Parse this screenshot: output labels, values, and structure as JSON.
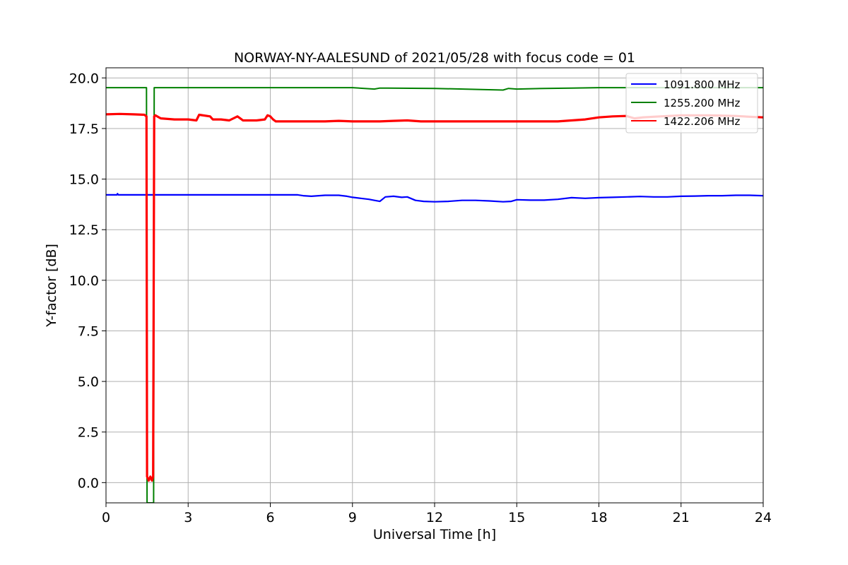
{
  "chart_data": {
    "type": "line",
    "title": "NORWAY-NY-AALESUND of 2021/05/28 with focus code = 01",
    "xlabel": "Universal Time [h]",
    "ylabel": "Y-factor [dB]",
    "xlim": [
      0,
      24
    ],
    "ylim": [
      -1.0,
      20.5
    ],
    "xticks": [
      0,
      3,
      6,
      9,
      12,
      15,
      18,
      21,
      24
    ],
    "xtick_labels": [
      "0",
      "3",
      "6",
      "9",
      "12",
      "15",
      "18",
      "21",
      "24"
    ],
    "yticks": [
      0.0,
      2.5,
      5.0,
      7.5,
      10.0,
      12.5,
      15.0,
      17.5,
      20.0
    ],
    "ytick_labels": [
      "0.0",
      "2.5",
      "5.0",
      "7.5",
      "10.0",
      "12.5",
      "15.0",
      "17.5",
      "20.0"
    ],
    "grid": true,
    "legend_position": "top-right",
    "series": [
      {
        "name": "1091.800 MHz",
        "color": "#0000ff",
        "x": [
          0,
          0.4,
          0.42,
          0.45,
          1,
          2,
          3,
          4,
          5,
          6,
          7,
          7.2,
          7.5,
          8,
          8.5,
          8.8,
          9,
          9.3,
          9.6,
          9.8,
          10,
          10.2,
          10.5,
          10.8,
          11,
          11.3,
          11.6,
          12,
          12.5,
          13,
          13.5,
          14,
          14.5,
          14.8,
          15,
          15.5,
          16,
          16.5,
          17,
          17.5,
          18,
          18.5,
          19,
          19.5,
          20,
          20.5,
          21,
          21.5,
          22,
          22.5,
          23,
          23.5,
          24
        ],
        "y": [
          14.22,
          14.22,
          14.28,
          14.22,
          14.22,
          14.22,
          14.22,
          14.22,
          14.22,
          14.22,
          14.22,
          14.18,
          14.15,
          14.2,
          14.2,
          14.15,
          14.1,
          14.05,
          14.0,
          13.95,
          13.9,
          14.12,
          14.15,
          14.1,
          14.12,
          13.95,
          13.9,
          13.88,
          13.9,
          13.95,
          13.95,
          13.92,
          13.88,
          13.9,
          13.98,
          13.96,
          13.96,
          14.0,
          14.08,
          14.05,
          14.08,
          14.1,
          14.12,
          14.14,
          14.12,
          14.12,
          14.15,
          14.16,
          14.18,
          14.18,
          14.2,
          14.2,
          14.18
        ]
      },
      {
        "name": "1255.200 MHz",
        "color": "#008000",
        "x": [
          0,
          1.48,
          1.5,
          1.74,
          1.76,
          3,
          6,
          9,
          9.8,
          10,
          10.3,
          12,
          14.5,
          14.7,
          15,
          16,
          17,
          18,
          21,
          24
        ],
        "y": [
          19.52,
          19.52,
          -1.0,
          -1.0,
          19.52,
          19.52,
          19.52,
          19.52,
          19.45,
          19.5,
          19.5,
          19.48,
          19.4,
          19.48,
          19.45,
          19.48,
          19.5,
          19.52,
          19.52,
          19.52
        ],
        "note_break": [
          1.5,
          1.74
        ]
      },
      {
        "name": "1422.206 MHz",
        "color": "#ff0000",
        "x": [
          0,
          0.5,
          1.0,
          1.4,
          1.48,
          1.5,
          1.56,
          1.62,
          1.68,
          1.72,
          1.76,
          1.8,
          2.0,
          2.5,
          3.0,
          3.3,
          3.4,
          3.8,
          3.9,
          4.2,
          4.5,
          4.8,
          4.9,
          5.0,
          5.5,
          5.8,
          5.9,
          6.0,
          6.1,
          6.2,
          7.0,
          8.0,
          8.5,
          9.0,
          10.0,
          10.5,
          11.0,
          11.5,
          12.0,
          13.0,
          14.0,
          15.0,
          16.0,
          16.5,
          17.0,
          17.5,
          18.0,
          18.5,
          19.0,
          19.3,
          19.6,
          20.0,
          21.0,
          22.0,
          23.0,
          23.5,
          24.0
        ],
        "y": [
          18.2,
          18.22,
          18.2,
          18.18,
          18.1,
          0.3,
          0.1,
          0.3,
          0.1,
          0.3,
          18.1,
          18.15,
          18.0,
          17.95,
          17.95,
          17.9,
          18.18,
          18.1,
          17.95,
          17.95,
          17.9,
          18.1,
          18.0,
          17.9,
          17.9,
          17.95,
          18.15,
          18.1,
          17.95,
          17.85,
          17.85,
          17.85,
          17.88,
          17.85,
          17.85,
          17.88,
          17.9,
          17.85,
          17.85,
          17.85,
          17.85,
          17.85,
          17.85,
          17.85,
          17.9,
          17.95,
          18.05,
          18.1,
          18.12,
          18.0,
          18.05,
          18.08,
          18.15,
          18.15,
          18.12,
          18.08,
          18.05
        ]
      }
    ]
  }
}
